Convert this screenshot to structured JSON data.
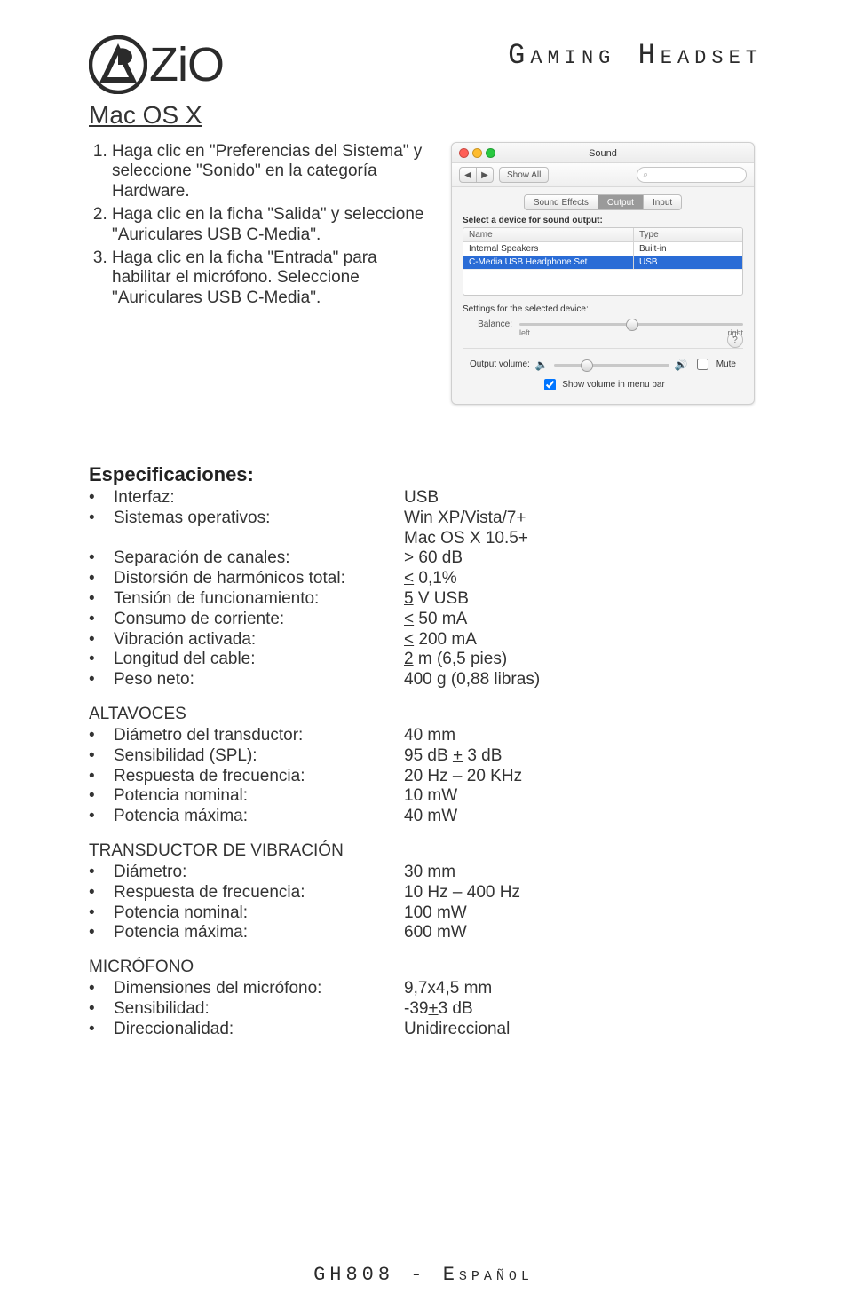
{
  "brand": {
    "name": "Zio",
    "product_title": "Gaming Headset"
  },
  "section": {
    "macosx": "Mac OS X"
  },
  "steps": [
    "Haga clic en \"Preferencias del Sistema\" y seleccione \"Sonido\" en la categoría Hardware.",
    "Haga clic en la ficha \"Salida\" y seleccione \"Auriculares USB C-Media\".",
    "Haga clic en la ficha \"Entrada\" para habilitar el micrófono. Seleccione \"Auriculares USB C-Media\"."
  ],
  "sound_panel": {
    "title": "Sound",
    "nav_back": "◀",
    "nav_fwd": "▶",
    "show_all": "Show All",
    "search_placeholder": "",
    "search_icon": "⌕",
    "tabs": {
      "effects": "Sound Effects",
      "output": "Output",
      "input": "Input",
      "active": "output"
    },
    "select_label": "Select a device for sound output:",
    "columns": {
      "name": "Name",
      "type": "Type"
    },
    "devices": [
      {
        "name": "Internal Speakers",
        "type": "Built-in",
        "selected": false
      },
      {
        "name": "C-Media USB Headphone Set",
        "type": "USB",
        "selected": true
      }
    ],
    "settings_label": "Settings for the selected device:",
    "balance": {
      "label": "Balance:",
      "left": "left",
      "right": "right",
      "value_pct": 50
    },
    "help": "?",
    "output_volume_label": "Output volume:",
    "mute_label": "Mute",
    "mute_checked": false,
    "output_value_pct": 28,
    "show_in_menu_label": "Show volume in menu bar",
    "show_in_menu_checked": true,
    "colors": {
      "selection": "#2a6cd6",
      "panel_bg": "#f4f4f4"
    }
  },
  "specs": {
    "heading": "Especificaciones:",
    "general": [
      {
        "k": "Interfaz:",
        "v": "USB"
      },
      {
        "k": "Sistemas operativos:",
        "v": "Win XP/Vista/7+"
      },
      {
        "k": "",
        "v": "Mac OS X 10.5+"
      },
      {
        "k": "Separación de canales:",
        "v": "> 60 dB",
        "overline": true
      },
      {
        "k": "Distorsión de harmónicos total:",
        "v": "< 0,1%",
        "overline": true
      },
      {
        "k": "Tensión de funcionamiento:",
        "v": "5 V USB",
        "overline_simple": true
      },
      {
        "k": "Consumo de corriente:",
        "v": "< 50 mA",
        "overline": true
      },
      {
        "k": "Vibración activada:",
        "v": "< 200 mA",
        "overline": true
      },
      {
        "k": "Longitud del cable:",
        "v": "2 m (6,5 pies)",
        "overline_simple": true
      },
      {
        "k": "Peso neto:",
        "v": "400 g (0,88 libras)"
      }
    ],
    "speakers_title": "ALTAVOCES",
    "speakers": [
      {
        "k": "Diámetro del transductor:",
        "v": "40 mm"
      },
      {
        "k": "Sensibilidad (SPL):",
        "v": "95 dB + 3 dB",
        "pm": true
      },
      {
        "k": "Respuesta de frecuencia:",
        "v": "20 Hz – 20 KHz"
      },
      {
        "k": "Potencia nominal:",
        "v": "10 mW"
      },
      {
        "k": "Potencia máxima:",
        "v": "40 mW"
      }
    ],
    "vib_title": "TRANSDUCTOR DE VIBRACIÓN",
    "vib": [
      {
        "k": "Diámetro:",
        "v": "30 mm"
      },
      {
        "k": "Respuesta de frecuencia:",
        "v": "10 Hz – 400 Hz"
      },
      {
        "k": "Potencia nominal:",
        "v": "100 mW"
      },
      {
        "k": "Potencia máxima:",
        "v": "600 mW"
      }
    ],
    "mic_title": "MICRÓFONO",
    "mic": [
      {
        "k": "Dimensiones del micrófono:",
        "v": "9,7x4,5 mm"
      },
      {
        "k": "Sensibilidad:",
        "v": "-39+3 dB",
        "pm": true
      },
      {
        "k": "Direccionalidad:",
        "v": "Unidireccional"
      }
    ]
  },
  "footer": {
    "text": "GH808 - Español"
  }
}
